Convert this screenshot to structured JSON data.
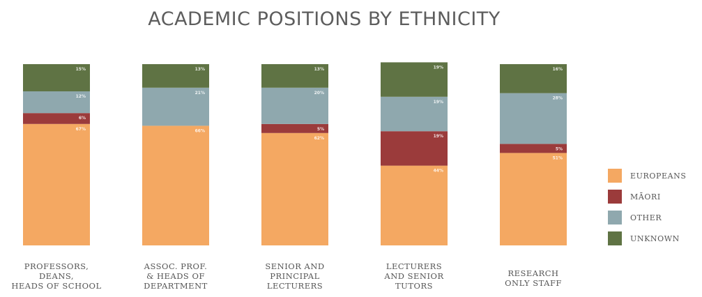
{
  "chart_data": {
    "type": "bar",
    "stacked": true,
    "title": "ACADEMIC POSITIONS BY ETHNICITY",
    "categories": [
      [
        "PROFESSORS,",
        "DEANS,",
        "HEADS OF SCHOOL"
      ],
      [
        "ASSOC. PROF.",
        "& HEADS OF",
        "DEPARTMENT"
      ],
      [
        "SENIOR AND",
        "PRINCIPAL",
        "LECTURERS"
      ],
      [
        "LECTURERS",
        "AND SENIOR",
        "TUTORS"
      ],
      [
        "RESEARCH",
        "ONLY STAFF"
      ]
    ],
    "series": [
      {
        "name": "EUROPEANS",
        "color": "#f4a862",
        "values": [
          67,
          66,
          62,
          44,
          51
        ]
      },
      {
        "name": "MĀORI",
        "color": "#9b3b3b",
        "values": [
          6,
          0,
          5,
          19,
          5
        ]
      },
      {
        "name": "OTHER",
        "color": "#8fa8ae",
        "values": [
          12,
          21,
          20,
          19,
          28
        ]
      },
      {
        "name": "UNKNOWN",
        "color": "#5f7344",
        "values": [
          15,
          13,
          13,
          19,
          16
        ]
      }
    ],
    "ylim": [
      0,
      100
    ],
    "legend_position": "right",
    "grid": false
  }
}
